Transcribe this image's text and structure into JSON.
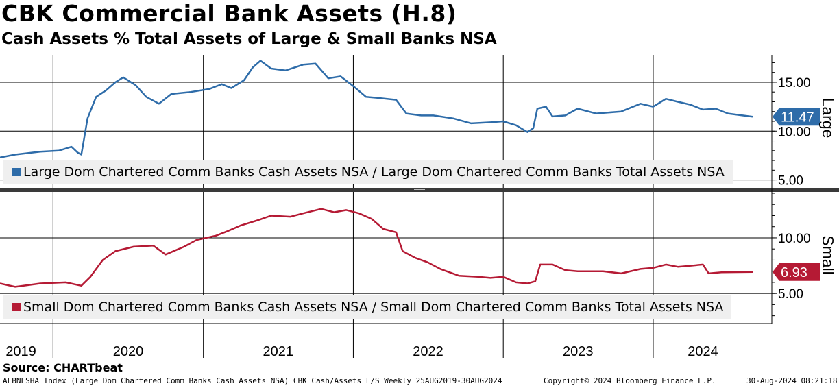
{
  "header": {
    "title": "CBK Commercial Bank Assets (H.8)",
    "subtitle": "Cash Assets % Total Assets of Large & Small Banks NSA"
  },
  "source": "Source: CHARTbeat",
  "footer": {
    "left": "ALBNLSHA Index (Large Dom Chartered Comm Banks Cash Assets NSA) CBK Cash/Assets L/S  Weekly 25AUG2019-30AUG2024",
    "middle": "Copyright© 2024 Bloomberg Finance L.P.",
    "right": "30-Aug-2024 08:21:18"
  },
  "chart_data": [
    {
      "type": "line",
      "panel": "Large",
      "x_range": [
        "2019-08-25",
        "2024-08-30"
      ],
      "y_ticks": [
        "15.00",
        "10.00",
        "5.00"
      ],
      "ylim": [
        4.2,
        17.8
      ],
      "last_value_label": "11.47",
      "color": "#2e6ca9",
      "series": [
        {
          "name": "Large Dom Chartered Comm Banks Cash Assets NSA / Large Dom Chartered Comm Banks Total Assets NSA",
          "points": [
            [
              "2019-08-25",
              7.3
            ],
            [
              "2019-10-01",
              7.6
            ],
            [
              "2019-12-01",
              7.9
            ],
            [
              "2020-01-15",
              8.0
            ],
            [
              "2020-02-15",
              8.4
            ],
            [
              "2020-03-01",
              7.8
            ],
            [
              "2020-03-10",
              7.6
            ],
            [
              "2020-03-25",
              11.3
            ],
            [
              "2020-04-15",
              13.5
            ],
            [
              "2020-05-10",
              14.2
            ],
            [
              "2020-06-01",
              15.0
            ],
            [
              "2020-06-20",
              15.5
            ],
            [
              "2020-07-20",
              14.7
            ],
            [
              "2020-08-15",
              13.5
            ],
            [
              "2020-09-15",
              12.8
            ],
            [
              "2020-10-15",
              13.8
            ],
            [
              "2020-12-01",
              14.0
            ],
            [
              "2021-01-15",
              14.3
            ],
            [
              "2021-02-15",
              14.8
            ],
            [
              "2021-03-10",
              14.4
            ],
            [
              "2021-04-10",
              15.2
            ],
            [
              "2021-05-01",
              16.5
            ],
            [
              "2021-05-20",
              17.2
            ],
            [
              "2021-06-15",
              16.4
            ],
            [
              "2021-07-20",
              16.2
            ],
            [
              "2021-09-01",
              16.8
            ],
            [
              "2021-10-01",
              16.9
            ],
            [
              "2021-11-01",
              15.4
            ],
            [
              "2021-12-01",
              15.6
            ],
            [
              "2022-01-01",
              14.6
            ],
            [
              "2022-02-01",
              13.5
            ],
            [
              "2022-03-01",
              13.4
            ],
            [
              "2022-04-15",
              13.2
            ],
            [
              "2022-05-10",
              11.8
            ],
            [
              "2022-06-15",
              11.6
            ],
            [
              "2022-07-15",
              11.6
            ],
            [
              "2022-09-01",
              11.3
            ],
            [
              "2022-10-15",
              10.8
            ],
            [
              "2022-12-01",
              10.9
            ],
            [
              "2023-01-01",
              11.0
            ],
            [
              "2023-02-01",
              10.6
            ],
            [
              "2023-03-01",
              9.9
            ],
            [
              "2023-03-15",
              10.3
            ],
            [
              "2023-03-25",
              12.3
            ],
            [
              "2023-04-15",
              12.5
            ],
            [
              "2023-05-01",
              11.5
            ],
            [
              "2023-06-01",
              11.6
            ],
            [
              "2023-07-01",
              12.3
            ],
            [
              "2023-08-15",
              11.8
            ],
            [
              "2023-10-15",
              12.0
            ],
            [
              "2023-12-01",
              12.8
            ],
            [
              "2024-01-01",
              12.5
            ],
            [
              "2024-02-01",
              13.3
            ],
            [
              "2024-03-01",
              13.0
            ],
            [
              "2024-04-01",
              12.7
            ],
            [
              "2024-05-01",
              12.2
            ],
            [
              "2024-06-01",
              12.3
            ],
            [
              "2024-07-01",
              11.8
            ],
            [
              "2024-08-30",
              11.47
            ]
          ]
        }
      ]
    },
    {
      "type": "line",
      "panel": "Small",
      "x_range": [
        "2019-08-25",
        "2024-08-30"
      ],
      "y_ticks": [
        "10.00",
        "5.00"
      ],
      "ylim": [
        2.3,
        14.0
      ],
      "last_value_label": "6.93",
      "color": "#b51a34",
      "series": [
        {
          "name": "Small Dom Chartered Comm Banks Cash Assets NSA / Small Dom Chartered Comm Banks Total Assets NSA",
          "points": [
            [
              "2019-08-25",
              5.9
            ],
            [
              "2019-10-01",
              5.6
            ],
            [
              "2019-12-01",
              5.9
            ],
            [
              "2020-02-01",
              6.0
            ],
            [
              "2020-03-10",
              5.7
            ],
            [
              "2020-04-01",
              6.5
            ],
            [
              "2020-05-01",
              8.0
            ],
            [
              "2020-06-01",
              8.8
            ],
            [
              "2020-07-15",
              9.2
            ],
            [
              "2020-09-01",
              9.3
            ],
            [
              "2020-10-01",
              8.5
            ],
            [
              "2020-11-15",
              9.2
            ],
            [
              "2020-12-15",
              9.8
            ],
            [
              "2021-02-01",
              10.2
            ],
            [
              "2021-03-01",
              10.6
            ],
            [
              "2021-04-01",
              11.1
            ],
            [
              "2021-05-15",
              11.6
            ],
            [
              "2021-06-15",
              12.0
            ],
            [
              "2021-08-01",
              11.9
            ],
            [
              "2021-09-01",
              12.2
            ],
            [
              "2021-10-15",
              12.6
            ],
            [
              "2021-11-15",
              12.3
            ],
            [
              "2021-12-15",
              12.5
            ],
            [
              "2022-01-15",
              12.2
            ],
            [
              "2022-02-15",
              11.7
            ],
            [
              "2022-03-15",
              10.8
            ],
            [
              "2022-04-15",
              10.5
            ],
            [
              "2022-05-01",
              8.8
            ],
            [
              "2022-06-01",
              8.2
            ],
            [
              "2022-07-01",
              7.8
            ],
            [
              "2022-08-01",
              7.2
            ],
            [
              "2022-09-15",
              6.6
            ],
            [
              "2022-11-01",
              6.5
            ],
            [
              "2022-12-01",
              6.4
            ],
            [
              "2023-01-01",
              6.5
            ],
            [
              "2023-02-01",
              6.0
            ],
            [
              "2023-03-01",
              5.9
            ],
            [
              "2023-03-20",
              6.1
            ],
            [
              "2023-04-01",
              7.6
            ],
            [
              "2023-05-01",
              7.6
            ],
            [
              "2023-06-01",
              7.1
            ],
            [
              "2023-07-01",
              7.0
            ],
            [
              "2023-09-01",
              7.0
            ],
            [
              "2023-10-15",
              6.8
            ],
            [
              "2023-12-01",
              7.2
            ],
            [
              "2024-01-01",
              7.3
            ],
            [
              "2024-02-01",
              7.6
            ],
            [
              "2024-03-01",
              7.4
            ],
            [
              "2024-04-01",
              7.5
            ],
            [
              "2024-05-01",
              7.6
            ],
            [
              "2024-05-15",
              6.8
            ],
            [
              "2024-06-15",
              6.9
            ],
            [
              "2024-08-30",
              6.93
            ]
          ]
        }
      ]
    }
  ],
  "x_tick_labels": [
    "2019",
    "2020",
    "2021",
    "2022",
    "2023",
    "2024"
  ]
}
